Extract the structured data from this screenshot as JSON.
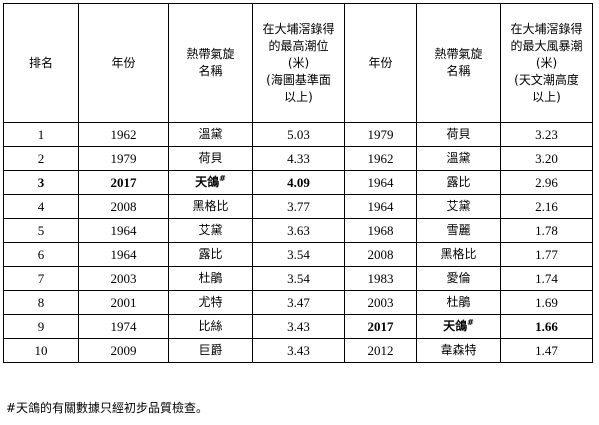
{
  "headers": {
    "rank": "排名",
    "year1": "年份",
    "name1": [
      "熱帶氣旋",
      "名稱"
    ],
    "level": [
      "在大埔滘錄得",
      "的最高潮位",
      "(米)",
      "(海圖基準面",
      "以上)"
    ],
    "year2": "年份",
    "name2": [
      "熱帶氣旋",
      "名稱"
    ],
    "surge": [
      "在大埔滘錄得",
      "的最大風暴潮",
      "(米)",
      "(天文潮高度",
      "以上)"
    ]
  },
  "rows": [
    {
      "rank": "1",
      "year1": "1962",
      "name1": "溫黛",
      "level": "5.03",
      "year2": "1979",
      "name2": "荷貝",
      "surge": "3.23",
      "bold_left": false,
      "bold_right": false
    },
    {
      "rank": "2",
      "year1": "1979",
      "name1": "荷貝",
      "level": "4.33",
      "year2": "1962",
      "name2": "溫黛",
      "surge": "3.20",
      "bold_left": false,
      "bold_right": false
    },
    {
      "rank": "3",
      "year1": "2017",
      "name1": "天鴿",
      "level": "4.09",
      "year2": "1964",
      "name2": "露比",
      "surge": "2.96",
      "bold_left": true,
      "bold_right": false,
      "mark1": "#"
    },
    {
      "rank": "4",
      "year1": "2008",
      "name1": "黑格比",
      "level": "3.77",
      "year2": "1964",
      "name2": "艾黛",
      "surge": "2.16",
      "bold_left": false,
      "bold_right": false
    },
    {
      "rank": "5",
      "year1": "1964",
      "name1": "艾黛",
      "level": "3.63",
      "year2": "1968",
      "name2": "雪麗",
      "surge": "1.78",
      "bold_left": false,
      "bold_right": false
    },
    {
      "rank": "6",
      "year1": "1964",
      "name1": "露比",
      "level": "3.54",
      "year2": "2008",
      "name2": "黑格比",
      "surge": "1.77",
      "bold_left": false,
      "bold_right": false
    },
    {
      "rank": "7",
      "year1": "2003",
      "name1": "杜鵑",
      "level": "3.54",
      "year2": "1983",
      "name2": "愛倫",
      "surge": "1.74",
      "bold_left": false,
      "bold_right": false
    },
    {
      "rank": "8",
      "year1": "2001",
      "name1": "尤特",
      "level": "3.47",
      "year2": "2003",
      "name2": "杜鵑",
      "surge": "1.69",
      "bold_left": false,
      "bold_right": false
    },
    {
      "rank": "9",
      "year1": "1974",
      "name1": "比絲",
      "level": "3.43",
      "year2": "2017",
      "name2": "天鴿",
      "surge": "1.66",
      "bold_left": false,
      "bold_right": true,
      "mark2": "#"
    },
    {
      "rank": "10",
      "year1": "2009",
      "name1": "巨爵",
      "level": "3.43",
      "year2": "2012",
      "name2": "韋森特",
      "surge": "1.47",
      "bold_left": false,
      "bold_right": false
    }
  ],
  "footnote": "#天鴿的有關數據只經初步品質檢查。"
}
